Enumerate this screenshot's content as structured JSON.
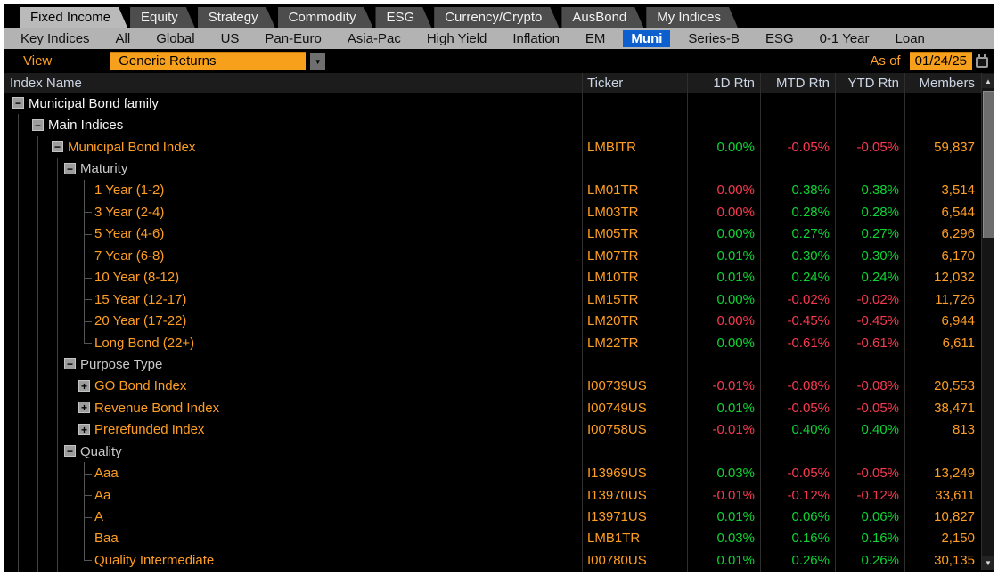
{
  "tabs": [
    {
      "label": "Fixed Income",
      "active": true
    },
    {
      "label": "Equity",
      "active": false
    },
    {
      "label": "Strategy",
      "active": false
    },
    {
      "label": "Commodity",
      "active": false
    },
    {
      "label": "ESG",
      "active": false
    },
    {
      "label": "Currency/Crypto",
      "active": false
    },
    {
      "label": "AusBond",
      "active": false
    },
    {
      "label": "My Indices",
      "active": false
    }
  ],
  "subtabs": {
    "items": [
      "Key Indices",
      "All",
      "Global",
      "US",
      "Pan-Euro",
      "Asia-Pac",
      "High Yield",
      "Inflation",
      "EM",
      "Muni",
      "Series-B",
      "ESG",
      "0-1 Year",
      "Loan"
    ],
    "selected": "Muni"
  },
  "view_bar": {
    "view_label": "View",
    "view_value": "Generic Returns",
    "dropdown_arrow": "▼",
    "as_of_label": "As of",
    "as_of_date": "01/24/25"
  },
  "table": {
    "columns": [
      "Index Name",
      "Ticker",
      "1D Rtn",
      "MTD Rtn",
      "YTD Rtn",
      "Members"
    ],
    "rows": [
      {
        "name": "Municipal Bond family",
        "level": 0,
        "node": "minus",
        "name_color": "white",
        "ticker": "",
        "r1d": null,
        "mtd": null,
        "ytd": null,
        "members": ""
      },
      {
        "name": "Main Indices",
        "level": 1,
        "node": "minus",
        "name_color": "white",
        "ticker": "",
        "r1d": null,
        "mtd": null,
        "ytd": null,
        "members": ""
      },
      {
        "name": "Municipal Bond Index",
        "level": 2,
        "node": "minus",
        "name_color": "amber",
        "ticker": "LMBITR",
        "r1d": {
          "v": "0.00%",
          "c": "up"
        },
        "mtd": {
          "v": "-0.05%",
          "c": "down"
        },
        "ytd": {
          "v": "-0.05%",
          "c": "down"
        },
        "members": "59,837"
      },
      {
        "name": "Maturity",
        "level": 3,
        "node": "minus",
        "name_color": "gray",
        "ticker": "",
        "r1d": null,
        "mtd": null,
        "ytd": null,
        "members": ""
      },
      {
        "name": "1 Year (1-2)",
        "level": 4,
        "node": "leaf",
        "name_color": "amber",
        "ticker": "LM01TR",
        "r1d": {
          "v": "0.00%",
          "c": "down"
        },
        "mtd": {
          "v": "0.38%",
          "c": "up"
        },
        "ytd": {
          "v": "0.38%",
          "c": "up"
        },
        "members": "3,514"
      },
      {
        "name": "3 Year (2-4)",
        "level": 4,
        "node": "leaf",
        "name_color": "amber",
        "ticker": "LM03TR",
        "r1d": {
          "v": "0.00%",
          "c": "down"
        },
        "mtd": {
          "v": "0.28%",
          "c": "up"
        },
        "ytd": {
          "v": "0.28%",
          "c": "up"
        },
        "members": "6,544"
      },
      {
        "name": "5 Year (4-6)",
        "level": 4,
        "node": "leaf",
        "name_color": "amber",
        "ticker": "LM05TR",
        "r1d": {
          "v": "0.00%",
          "c": "up"
        },
        "mtd": {
          "v": "0.27%",
          "c": "up"
        },
        "ytd": {
          "v": "0.27%",
          "c": "up"
        },
        "members": "6,296"
      },
      {
        "name": "7 Year (6-8)",
        "level": 4,
        "node": "leaf",
        "name_color": "amber",
        "ticker": "LM07TR",
        "r1d": {
          "v": "0.01%",
          "c": "up"
        },
        "mtd": {
          "v": "0.30%",
          "c": "up"
        },
        "ytd": {
          "v": "0.30%",
          "c": "up"
        },
        "members": "6,170"
      },
      {
        "name": "10 Year (8-12)",
        "level": 4,
        "node": "leaf",
        "name_color": "amber",
        "ticker": "LM10TR",
        "r1d": {
          "v": "0.01%",
          "c": "up"
        },
        "mtd": {
          "v": "0.24%",
          "c": "up"
        },
        "ytd": {
          "v": "0.24%",
          "c": "up"
        },
        "members": "12,032"
      },
      {
        "name": "15 Year (12-17)",
        "level": 4,
        "node": "leaf",
        "name_color": "amber",
        "ticker": "LM15TR",
        "r1d": {
          "v": "0.00%",
          "c": "up"
        },
        "mtd": {
          "v": "-0.02%",
          "c": "down"
        },
        "ytd": {
          "v": "-0.02%",
          "c": "down"
        },
        "members": "11,726"
      },
      {
        "name": "20 Year (17-22)",
        "level": 4,
        "node": "leaf",
        "name_color": "amber",
        "ticker": "LM20TR",
        "r1d": {
          "v": "0.00%",
          "c": "down"
        },
        "mtd": {
          "v": "-0.45%",
          "c": "down"
        },
        "ytd": {
          "v": "-0.45%",
          "c": "down"
        },
        "members": "6,944"
      },
      {
        "name": "Long Bond (22+)",
        "level": 4,
        "node": "leaf-end",
        "name_color": "amber",
        "ticker": "LM22TR",
        "r1d": {
          "v": "0.00%",
          "c": "up"
        },
        "mtd": {
          "v": "-0.61%",
          "c": "down"
        },
        "ytd": {
          "v": "-0.61%",
          "c": "down"
        },
        "members": "6,611"
      },
      {
        "name": "Purpose Type",
        "level": 3,
        "node": "minus",
        "name_color": "gray",
        "ticker": "",
        "r1d": null,
        "mtd": null,
        "ytd": null,
        "members": ""
      },
      {
        "name": "GO Bond Index",
        "level": 4,
        "node": "plus",
        "name_color": "amber",
        "ticker": "I00739US",
        "r1d": {
          "v": "-0.01%",
          "c": "down"
        },
        "mtd": {
          "v": "-0.08%",
          "c": "down"
        },
        "ytd": {
          "v": "-0.08%",
          "c": "down"
        },
        "members": "20,553"
      },
      {
        "name": "Revenue Bond Index",
        "level": 4,
        "node": "plus",
        "name_color": "amber",
        "ticker": "I00749US",
        "r1d": {
          "v": "0.01%",
          "c": "up"
        },
        "mtd": {
          "v": "-0.05%",
          "c": "down"
        },
        "ytd": {
          "v": "-0.05%",
          "c": "down"
        },
        "members": "38,471"
      },
      {
        "name": "Prerefunded Index",
        "level": 4,
        "node": "plus",
        "name_color": "amber",
        "ticker": "I00758US",
        "r1d": {
          "v": "-0.01%",
          "c": "down"
        },
        "mtd": {
          "v": "0.40%",
          "c": "up"
        },
        "ytd": {
          "v": "0.40%",
          "c": "up"
        },
        "members": "813"
      },
      {
        "name": "Quality",
        "level": 3,
        "node": "minus",
        "name_color": "gray",
        "ticker": "",
        "r1d": null,
        "mtd": null,
        "ytd": null,
        "members": ""
      },
      {
        "name": "Aaa",
        "level": 4,
        "node": "leaf",
        "name_color": "amber",
        "ticker": "I13969US",
        "r1d": {
          "v": "0.03%",
          "c": "up"
        },
        "mtd": {
          "v": "-0.05%",
          "c": "down"
        },
        "ytd": {
          "v": "-0.05%",
          "c": "down"
        },
        "members": "13,249"
      },
      {
        "name": "Aa",
        "level": 4,
        "node": "leaf",
        "name_color": "amber",
        "ticker": "I13970US",
        "r1d": {
          "v": "-0.01%",
          "c": "down"
        },
        "mtd": {
          "v": "-0.12%",
          "c": "down"
        },
        "ytd": {
          "v": "-0.12%",
          "c": "down"
        },
        "members": "33,611"
      },
      {
        "name": "A",
        "level": 4,
        "node": "leaf",
        "name_color": "amber",
        "ticker": "I13971US",
        "r1d": {
          "v": "0.01%",
          "c": "up"
        },
        "mtd": {
          "v": "0.06%",
          "c": "up"
        },
        "ytd": {
          "v": "0.06%",
          "c": "up"
        },
        "members": "10,827"
      },
      {
        "name": "Baa",
        "level": 4,
        "node": "leaf",
        "name_color": "amber",
        "ticker": "LMB1TR",
        "r1d": {
          "v": "0.03%",
          "c": "up"
        },
        "mtd": {
          "v": "0.16%",
          "c": "up"
        },
        "ytd": {
          "v": "0.16%",
          "c": "up"
        },
        "members": "2,150"
      },
      {
        "name": "Quality Intermediate",
        "level": 4,
        "node": "leaf-end",
        "name_color": "amber",
        "ticker": "I00780US",
        "r1d": {
          "v": "0.01%",
          "c": "up"
        },
        "mtd": {
          "v": "0.26%",
          "c": "up"
        },
        "ytd": {
          "v": "0.26%",
          "c": "up"
        },
        "members": "30,135"
      }
    ]
  },
  "scrollbar": {
    "up_arrow": "▲",
    "down_arrow": "▼"
  },
  "icons": {
    "node_collapse": "minus-box-icon",
    "node_expand": "plus-box-icon",
    "dropdown": "chevron-down-icon",
    "calendar": "calendar-icon"
  },
  "colors": {
    "amber": "#ff9e24",
    "positive": "#0fd335",
    "negative": "#f83a50",
    "selected_subtab_bg": "#0d5fd0",
    "dropdown_bg": "#f6a01c",
    "active_tab_bg": "#bababa",
    "inactive_tab_bg": "#4d4d4d",
    "subtab_bar_bg": "#b3b3b3",
    "header_text": "#ccd5e4",
    "white_row_text": "#f4f4f4",
    "gray_row_text": "#c9c9c9",
    "background": "#000000"
  }
}
